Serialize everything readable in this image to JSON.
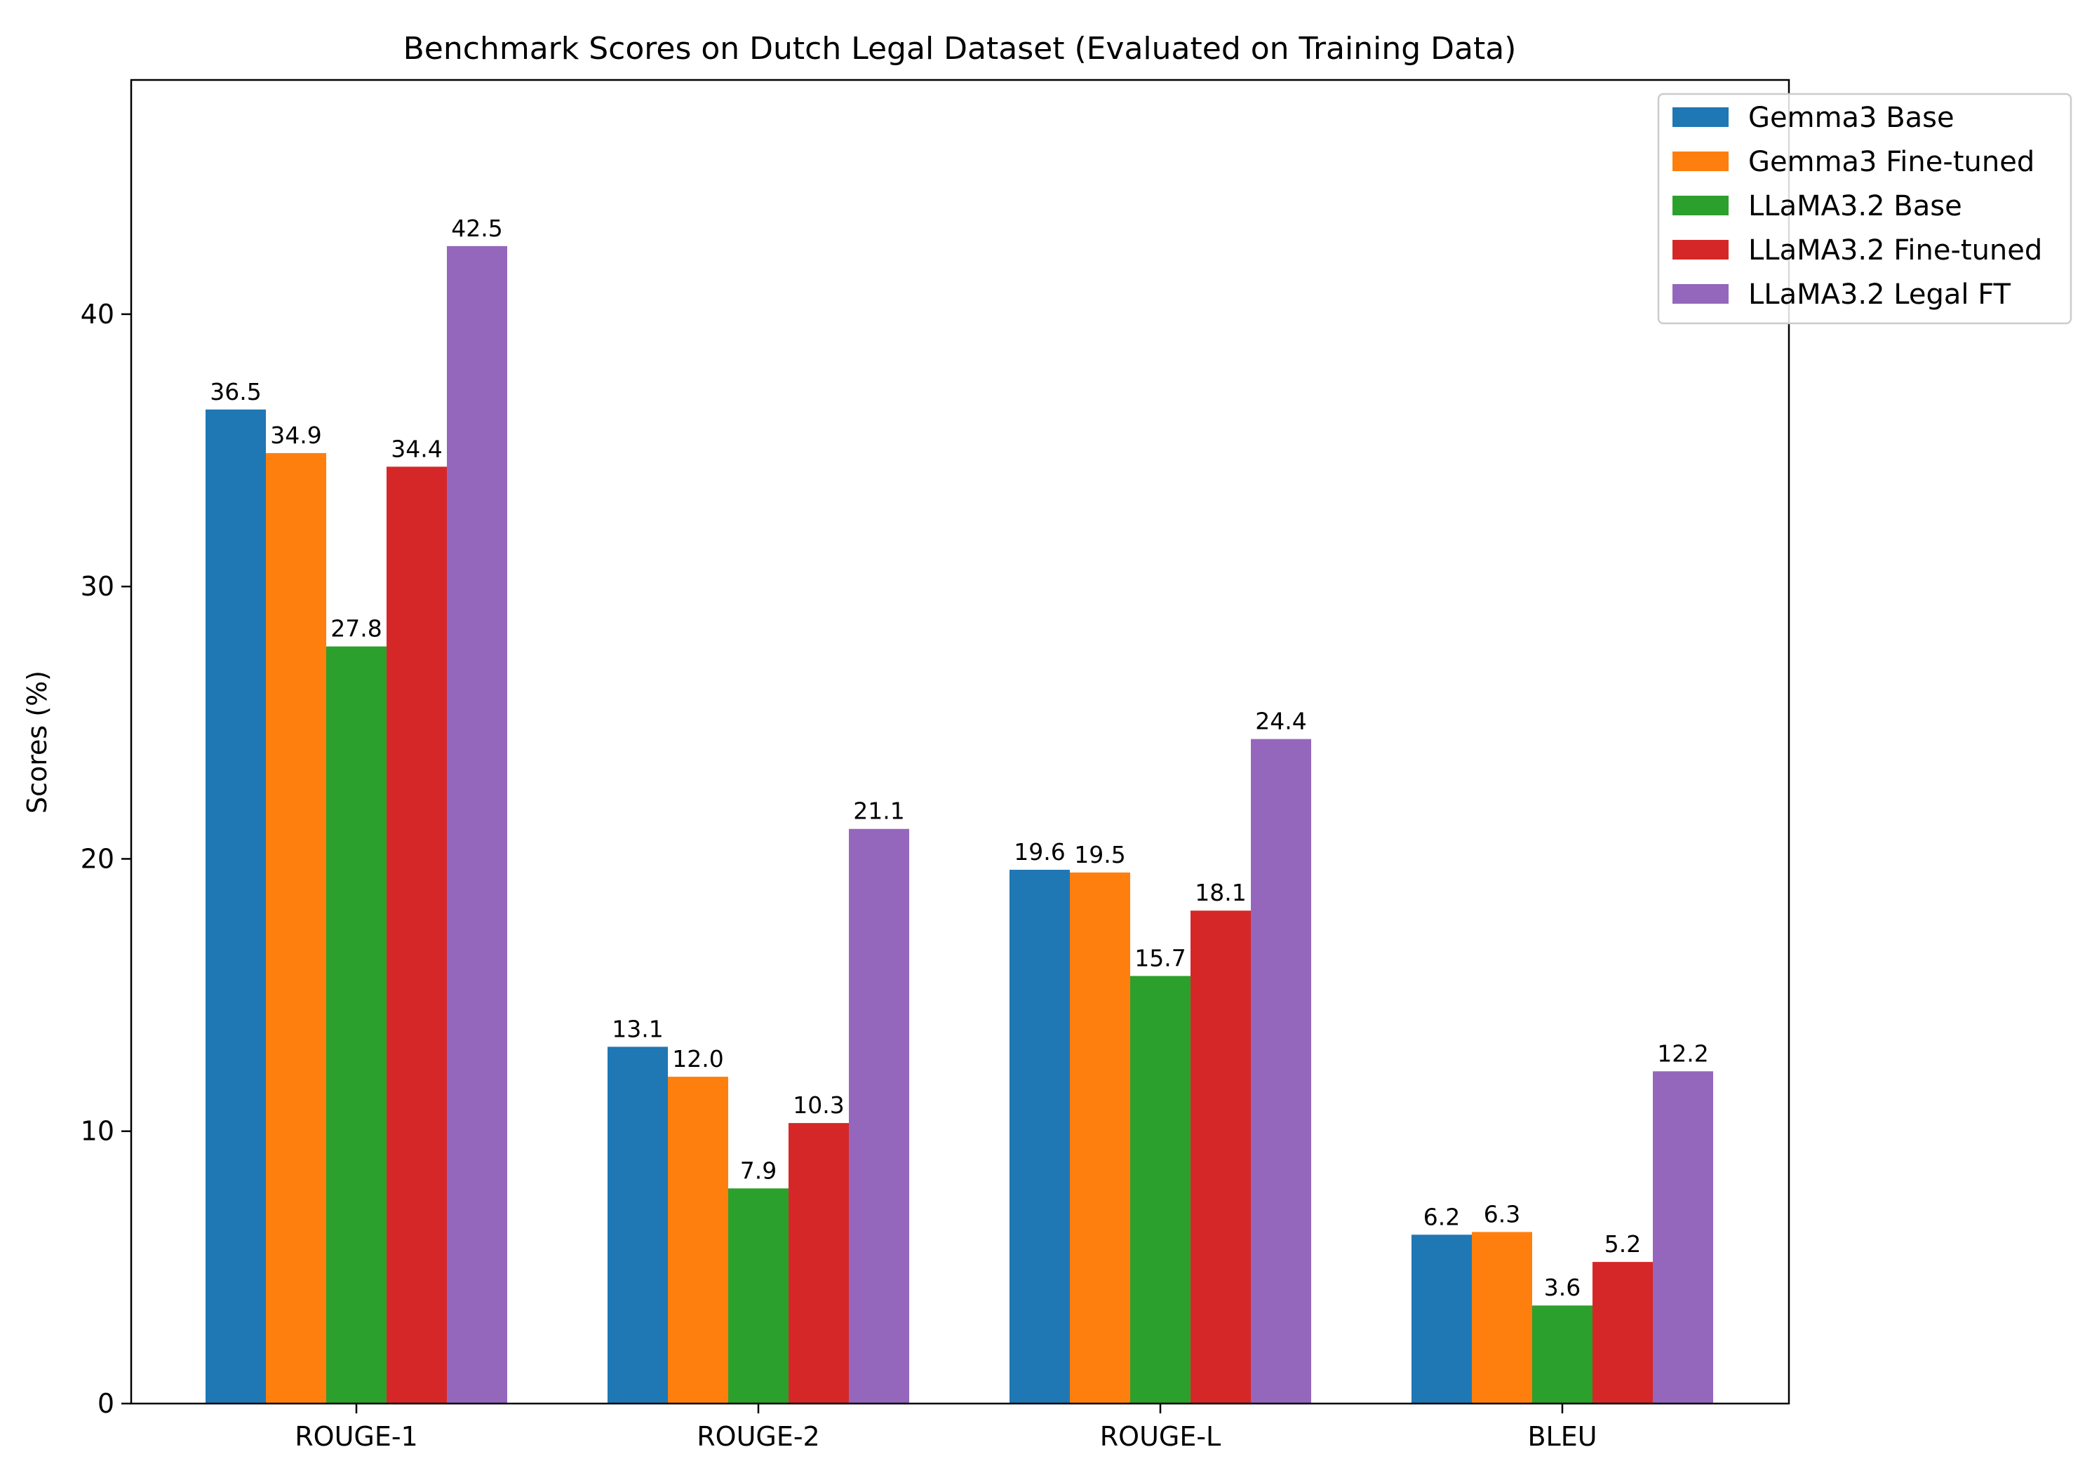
{
  "chart_data": {
    "type": "bar",
    "title": "Benchmark Scores on Dutch Legal Dataset (Evaluated on Training Data)",
    "xlabel": "",
    "ylabel": "Scores (%)",
    "categories": [
      "ROUGE-1",
      "ROUGE-2",
      "ROUGE-L",
      "BLEU"
    ],
    "ylim": [
      0,
      48.6
    ],
    "yticks": [
      0,
      10,
      20,
      30,
      40
    ],
    "grid": false,
    "legend_position": "top-right",
    "series": [
      {
        "name": "Gemma3 Base",
        "color": "#1f77b4",
        "values": [
          36.5,
          13.1,
          19.6,
          6.2
        ],
        "labels": [
          "36.5",
          "13.1",
          "19.6",
          "6.2"
        ]
      },
      {
        "name": "Gemma3 Fine-tuned",
        "color": "#ff7f0e",
        "values": [
          34.9,
          12.0,
          19.5,
          6.3
        ],
        "labels": [
          "34.9",
          "12.0",
          "19.5",
          "6.3"
        ]
      },
      {
        "name": "LLaMA3.2 Base",
        "color": "#2ca02c",
        "values": [
          27.8,
          7.9,
          15.7,
          3.6
        ],
        "labels": [
          "27.8",
          "7.9",
          "15.7",
          "3.6"
        ]
      },
      {
        "name": "LLaMA3.2 Fine-tuned",
        "color": "#d62728",
        "values": [
          34.4,
          10.3,
          18.1,
          5.2
        ],
        "labels": [
          "34.4",
          "10.3",
          "18.1",
          "5.2"
        ]
      },
      {
        "name": "LLaMA3.2 Legal FT",
        "color": "#9467bd",
        "values": [
          42.5,
          21.1,
          24.4,
          12.2
        ],
        "labels": [
          "42.5",
          "21.1",
          "24.4",
          "12.2"
        ]
      }
    ]
  }
}
